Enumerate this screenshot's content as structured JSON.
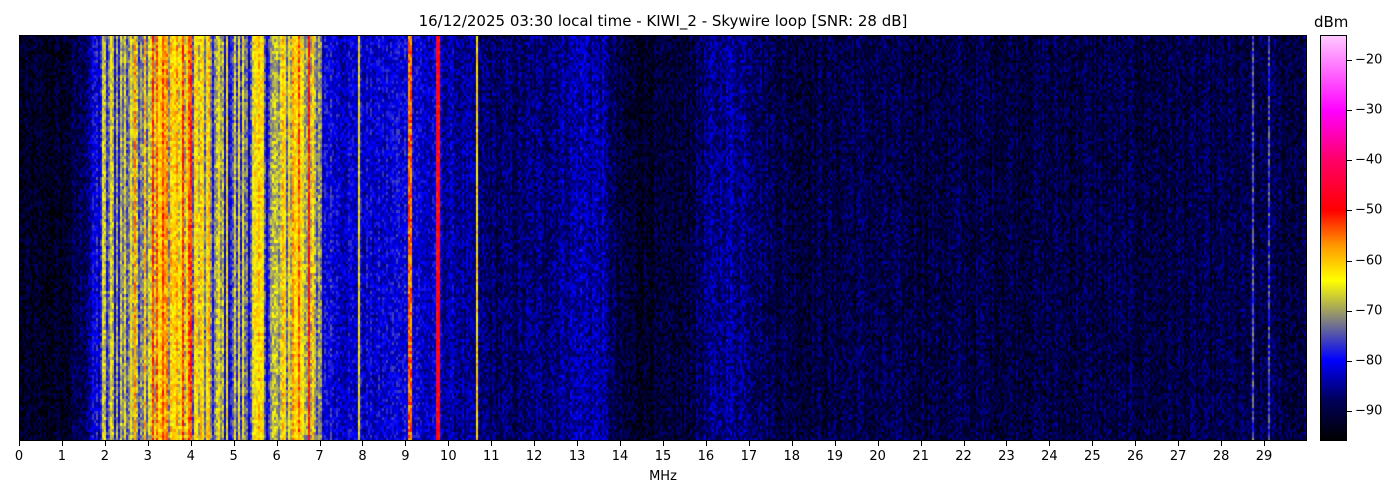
{
  "chart_data": {
    "type": "heatmap",
    "title": "16/12/2025 03:30 local time - KIWI_2 - Skywire loop [SNR: 28 dB]",
    "xlabel": "MHz",
    "ylabel": "",
    "xlim": [
      0,
      30
    ],
    "x_ticks": [
      0,
      1,
      2,
      3,
      4,
      5,
      6,
      7,
      8,
      9,
      10,
      11,
      12,
      13,
      14,
      15,
      16,
      17,
      18,
      19,
      20,
      21,
      22,
      23,
      24,
      25,
      26,
      27,
      28,
      29
    ],
    "colorbar": {
      "label": "dBm",
      "range": [
        -96,
        -15
      ],
      "ticks": [
        -20,
        -30,
        -40,
        -50,
        -60,
        -70,
        -80,
        -90
      ],
      "colormap": [
        {
          "value": -96,
          "color": "#000000"
        },
        {
          "value": -88,
          "color": "#00005a"
        },
        {
          "value": -80,
          "color": "#0000ff"
        },
        {
          "value": -72,
          "color": "#808080"
        },
        {
          "value": -64,
          "color": "#ffff00"
        },
        {
          "value": -57,
          "color": "#ff9900"
        },
        {
          "value": -50,
          "color": "#ff0000"
        },
        {
          "value": -40,
          "color": "#ff0066"
        },
        {
          "value": -30,
          "color": "#ff00ff"
        },
        {
          "value": -15,
          "color": "#ffc8ff"
        }
      ]
    },
    "band_levels_dbm": {
      "freq_mhz": [
        0,
        0.5,
        1,
        1.5,
        2,
        2.5,
        3,
        3.5,
        4,
        4.5,
        5,
        5.5,
        6,
        6.5,
        7,
        7.5,
        8,
        8.5,
        9,
        9.5,
        10,
        10.5,
        11,
        11.5,
        12,
        12.5,
        13,
        13.5,
        14,
        14.5,
        15,
        15.5,
        16,
        16.5,
        17,
        17.5,
        18,
        18.5,
        19,
        19.5,
        20,
        21,
        22,
        23,
        24,
        25,
        26,
        27,
        28,
        29,
        30
      ],
      "level": [
        -93,
        -93,
        -93,
        -88,
        -74,
        -70,
        -62,
        -61,
        -63,
        -72,
        -73,
        -70,
        -72,
        -58,
        -78,
        -82,
        -82,
        -82,
        -80,
        -83,
        -84,
        -86,
        -88,
        -88,
        -87,
        -86,
        -84,
        -84,
        -91,
        -92,
        -92,
        -91,
        -87,
        -85,
        -86,
        -89,
        -90,
        -90,
        -90,
        -89,
        -90,
        -90,
        -90,
        -90,
        -90,
        -90,
        -90,
        -90,
        -90,
        -90,
        -90
      ]
    },
    "carriers": [
      {
        "freq_mhz": 1.95,
        "level": -66
      },
      {
        "freq_mhz": 2.6,
        "level": -64
      },
      {
        "freq_mhz": 3.1,
        "level": -52
      },
      {
        "freq_mhz": 4.0,
        "level": -52
      },
      {
        "freq_mhz": 5.6,
        "level": -62
      },
      {
        "freq_mhz": 6.75,
        "level": -50
      },
      {
        "freq_mhz": 7.9,
        "level": -64
      },
      {
        "freq_mhz": 9.1,
        "level": -55
      },
      {
        "freq_mhz": 9.75,
        "level": -48
      },
      {
        "freq_mhz": 10.65,
        "level": -62
      },
      {
        "freq_mhz": 28.75,
        "level": -75
      },
      {
        "freq_mhz": 29.15,
        "level": -76
      }
    ]
  }
}
